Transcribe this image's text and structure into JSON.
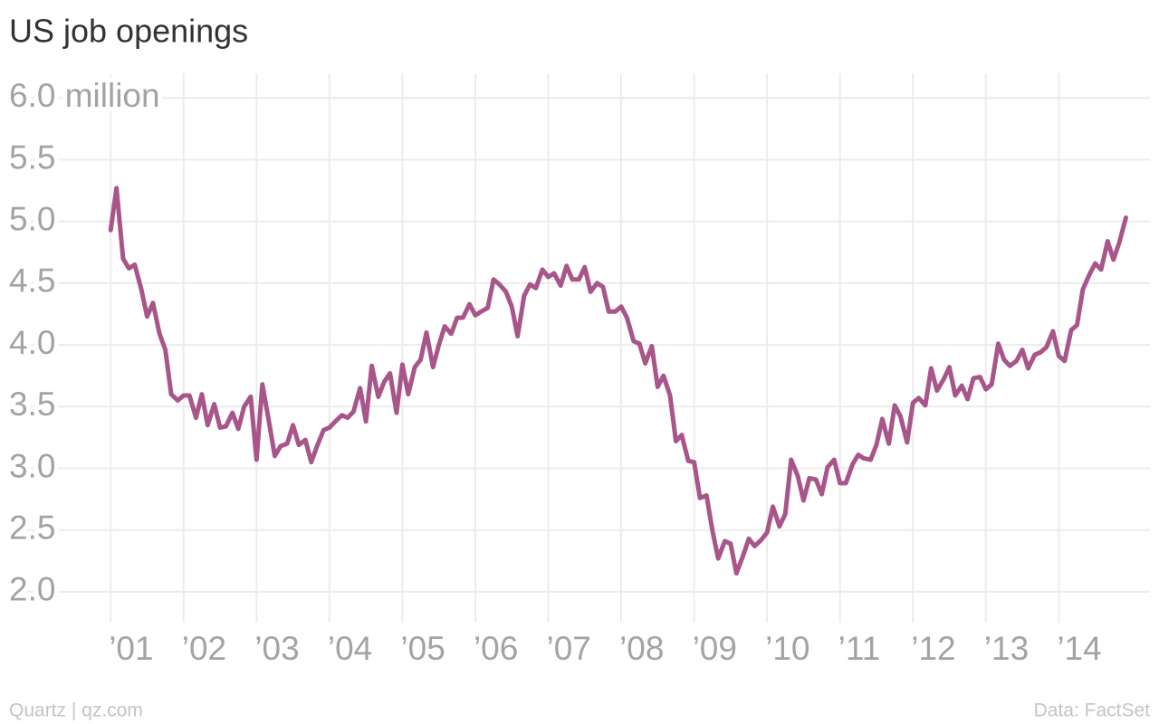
{
  "chart_data": {
    "type": "line",
    "title": "US job openings",
    "source_left": "Quartz | qz.com",
    "source_right": "Data: FactSet",
    "grid": true,
    "xlim": [
      2000.6,
      2015.25
    ],
    "ylim": [
      1.75,
      6.2
    ],
    "xticks": [
      {
        "value": 2001,
        "label": "’01"
      },
      {
        "value": 2002,
        "label": "’02"
      },
      {
        "value": 2003,
        "label": "’03"
      },
      {
        "value": 2004,
        "label": "’04"
      },
      {
        "value": 2005,
        "label": "’05"
      },
      {
        "value": 2006,
        "label": "’06"
      },
      {
        "value": 2007,
        "label": "’07"
      },
      {
        "value": 2008,
        "label": "’08"
      },
      {
        "value": 2009,
        "label": "’09"
      },
      {
        "value": 2010,
        "label": "’10"
      },
      {
        "value": 2011,
        "label": "’11"
      },
      {
        "value": 2012,
        "label": "’12"
      },
      {
        "value": 2013,
        "label": "’13"
      },
      {
        "value": 2014,
        "label": "’14"
      }
    ],
    "yticks": [
      {
        "value": 2,
        "label": "2.0"
      },
      {
        "value": 2.5,
        "label": "2.5"
      },
      {
        "value": 3,
        "label": "3.0"
      },
      {
        "value": 3.5,
        "label": "3.5"
      },
      {
        "value": 4,
        "label": "4.0"
      },
      {
        "value": 4.5,
        "label": "4.5"
      },
      {
        "value": 5,
        "label": "5.0"
      },
      {
        "value": 5.5,
        "label": "5.5"
      },
      {
        "value": 6,
        "label": "6.0 million"
      }
    ],
    "x": [
      2001,
      2001.08,
      2001.17,
      2001.25,
      2001.33,
      2001.42,
      2001.5,
      2001.58,
      2001.67,
      2001.75,
      2001.83,
      2001.92,
      2002,
      2002.08,
      2002.17,
      2002.25,
      2002.33,
      2002.42,
      2002.5,
      2002.58,
      2002.67,
      2002.75,
      2002.83,
      2002.92,
      2003,
      2003.08,
      2003.17,
      2003.25,
      2003.33,
      2003.42,
      2003.5,
      2003.58,
      2003.67,
      2003.75,
      2003.83,
      2003.92,
      2004,
      2004.08,
      2004.17,
      2004.25,
      2004.33,
      2004.42,
      2004.5,
      2004.58,
      2004.67,
      2004.75,
      2004.83,
      2004.92,
      2005,
      2005.08,
      2005.17,
      2005.25,
      2005.33,
      2005.42,
      2005.5,
      2005.58,
      2005.67,
      2005.75,
      2005.83,
      2005.92,
      2006,
      2006.08,
      2006.17,
      2006.25,
      2006.33,
      2006.42,
      2006.5,
      2006.58,
      2006.67,
      2006.75,
      2006.83,
      2006.92,
      2007,
      2007.08,
      2007.17,
      2007.25,
      2007.33,
      2007.42,
      2007.5,
      2007.58,
      2007.67,
      2007.75,
      2007.83,
      2007.92,
      2008,
      2008.08,
      2008.17,
      2008.25,
      2008.33,
      2008.42,
      2008.5,
      2008.58,
      2008.67,
      2008.75,
      2008.83,
      2008.92,
      2009,
      2009.08,
      2009.17,
      2009.25,
      2009.33,
      2009.42,
      2009.5,
      2009.58,
      2009.67,
      2009.75,
      2009.83,
      2009.92,
      2010,
      2010.08,
      2010.17,
      2010.25,
      2010.33,
      2010.42,
      2010.5,
      2010.58,
      2010.67,
      2010.75,
      2010.83,
      2010.92,
      2011,
      2011.08,
      2011.17,
      2011.25,
      2011.33,
      2011.42,
      2011.5,
      2011.58,
      2011.67,
      2011.75,
      2011.83,
      2011.92,
      2012,
      2012.08,
      2012.17,
      2012.25,
      2012.33,
      2012.42,
      2012.5,
      2012.58,
      2012.67,
      2012.75,
      2012.83,
      2012.92,
      2013,
      2013.08,
      2013.17,
      2013.25,
      2013.33,
      2013.42,
      2013.5,
      2013.58,
      2013.67,
      2013.75,
      2013.83,
      2013.92,
      2014,
      2014.08,
      2014.17,
      2014.25,
      2014.33,
      2014.42,
      2014.5,
      2014.58,
      2014.67,
      2014.75,
      2014.83,
      2014.92
    ],
    "series": [
      {
        "color": "#a8558a",
        "values": [
          4.93,
          5.27,
          4.7,
          4.62,
          4.65,
          4.45,
          4.23,
          4.34,
          4.09,
          3.96,
          3.6,
          3.55,
          3.59,
          3.59,
          3.41,
          3.6,
          3.35,
          3.52,
          3.33,
          3.34,
          3.45,
          3.32,
          3.5,
          3.58,
          3.07,
          3.68,
          3.38,
          3.1,
          3.18,
          3.2,
          3.35,
          3.19,
          3.23,
          3.05,
          3.18,
          3.31,
          3.33,
          3.38,
          3.43,
          3.41,
          3.46,
          3.65,
          3.38,
          3.83,
          3.58,
          3.7,
          3.77,
          3.45,
          3.84,
          3.6,
          3.82,
          3.88,
          4.1,
          3.82,
          4.0,
          4.15,
          4.09,
          4.22,
          4.22,
          4.33,
          4.24,
          4.27,
          4.3,
          4.53,
          4.49,
          4.43,
          4.31,
          4.07,
          4.4,
          4.49,
          4.46,
          4.61,
          4.55,
          4.58,
          4.48,
          4.64,
          4.53,
          4.53,
          4.63,
          4.43,
          4.5,
          4.47,
          4.27,
          4.27,
          4.31,
          4.22,
          4.03,
          4.01,
          3.85,
          3.99,
          3.66,
          3.75,
          3.59,
          3.22,
          3.27,
          3.06,
          3.05,
          2.76,
          2.78,
          2.5,
          2.27,
          2.41,
          2.39,
          2.15,
          2.29,
          2.43,
          2.37,
          2.42,
          2.48,
          2.69,
          2.53,
          2.63,
          3.07,
          2.94,
          2.74,
          2.92,
          2.91,
          2.79,
          3.01,
          3.07,
          2.88,
          2.88,
          3.03,
          3.11,
          3.08,
          3.07,
          3.19,
          3.4,
          3.2,
          3.51,
          3.42,
          3.21,
          3.53,
          3.57,
          3.51,
          3.81,
          3.63,
          3.72,
          3.82,
          3.59,
          3.67,
          3.56,
          3.73,
          3.74,
          3.64,
          3.68,
          4.01,
          3.88,
          3.83,
          3.87,
          3.96,
          3.81,
          3.92,
          3.94,
          3.98,
          4.11,
          3.91,
          3.87,
          4.12,
          4.16,
          4.45,
          4.57,
          4.66,
          4.61,
          4.84,
          4.69,
          4.83,
          5.03
        ]
      }
    ]
  }
}
